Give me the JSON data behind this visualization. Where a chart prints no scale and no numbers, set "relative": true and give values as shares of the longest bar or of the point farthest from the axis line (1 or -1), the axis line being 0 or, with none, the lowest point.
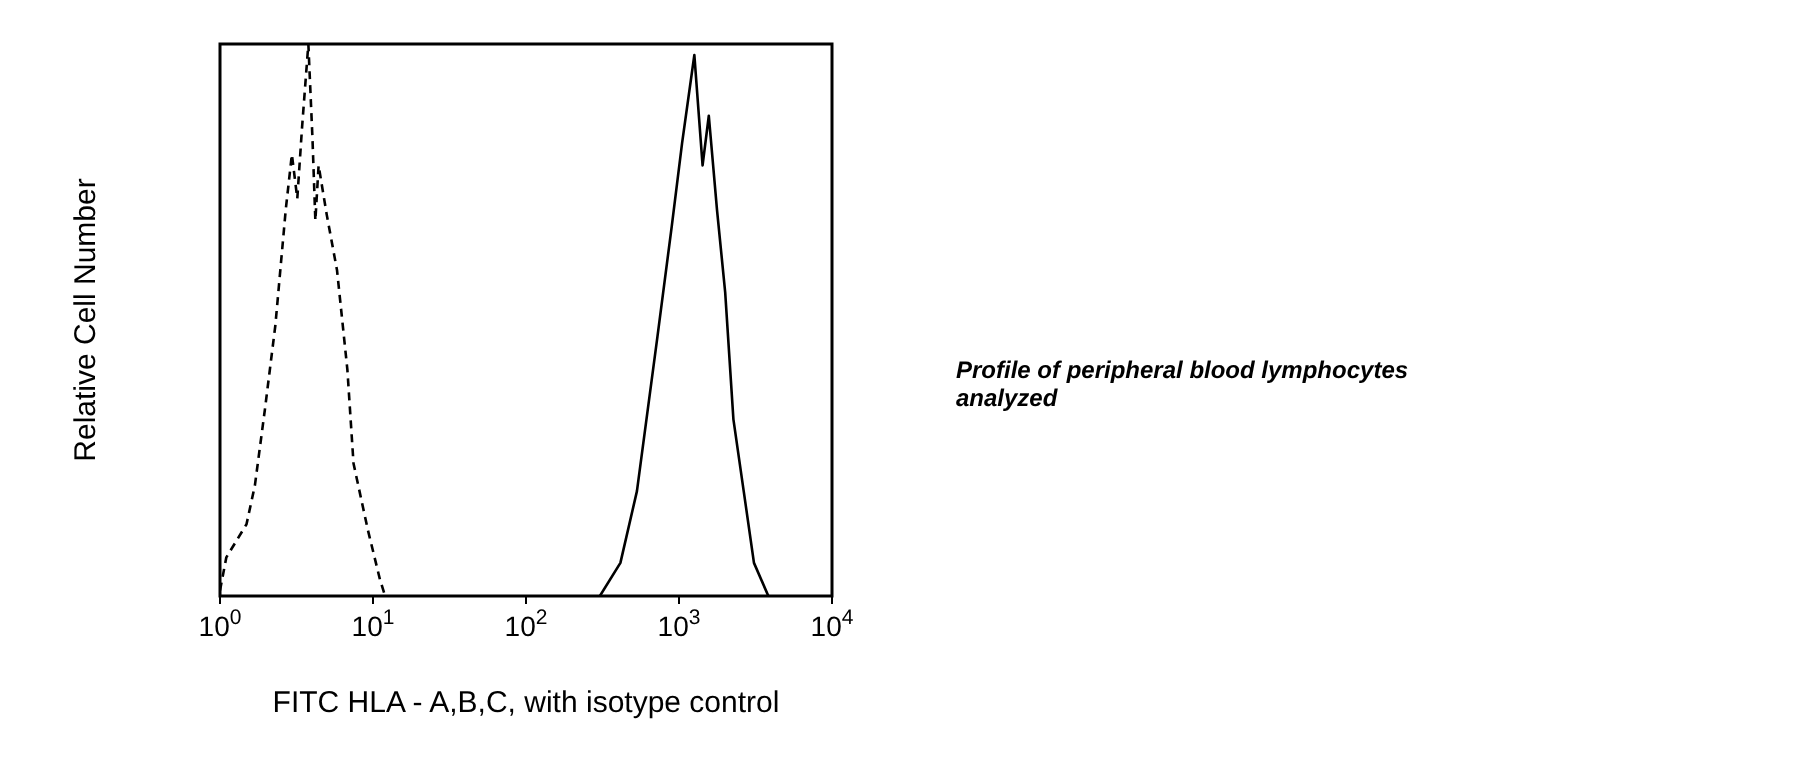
{
  "chart_data": {
    "type": "line",
    "relative": true,
    "xlabel": "FITC HLA - A,B,C, with isotype control",
    "ylabel": "Relative Cell Number",
    "log": "x",
    "xlim": [
      1,
      10000
    ],
    "xticks": [
      {
        "value": 1,
        "label": "10$^{0}$"
      },
      {
        "value": 10,
        "label": "10$^{1}$"
      },
      {
        "value": 100,
        "label": "10$^{2}$"
      },
      {
        "value": 1000,
        "label": "10$^{3}$"
      },
      {
        "value": 10000,
        "label": "10$^{4}$"
      }
    ],
    "marker": "none",
    "annotations": [
      "Profile of peripheral blood lymphocytes analyzed"
    ],
    "series": [
      {
        "color": "#000000",
        "line_style": "dashed",
        "x": [
          1.0,
          1.1,
          1.49,
          1.69,
          1.97,
          2.3,
          2.69,
          2.95,
          3.2,
          3.44,
          3.78,
          4.02,
          4.2,
          4.41,
          4.99,
          5.82,
          6.8,
          7.46,
          9.25,
          11.1,
          12
        ],
        "values": [
          0.01,
          0.07,
          0.13,
          0.2,
          0.34,
          0.49,
          0.7,
          0.8,
          0.72,
          0.85,
          1.0,
          0.83,
          0.68,
          0.78,
          0.69,
          0.59,
          0.41,
          0.24,
          0.12,
          0.03,
          0
        ]
      },
      {
        "color": "#000000",
        "line_style": "solid",
        "x": [
          304,
          414,
          531,
          723,
          897,
          1047,
          1260,
          1426,
          1566,
          1771,
          2004,
          2268,
          2648,
          3090,
          3837
        ],
        "values": [
          0,
          0.06,
          0.19,
          0.47,
          0.67,
          0.82,
          0.98,
          0.78,
          0.87,
          0.7,
          0.55,
          0.32,
          0.19,
          0.06,
          0
        ]
      }
    ]
  }
}
